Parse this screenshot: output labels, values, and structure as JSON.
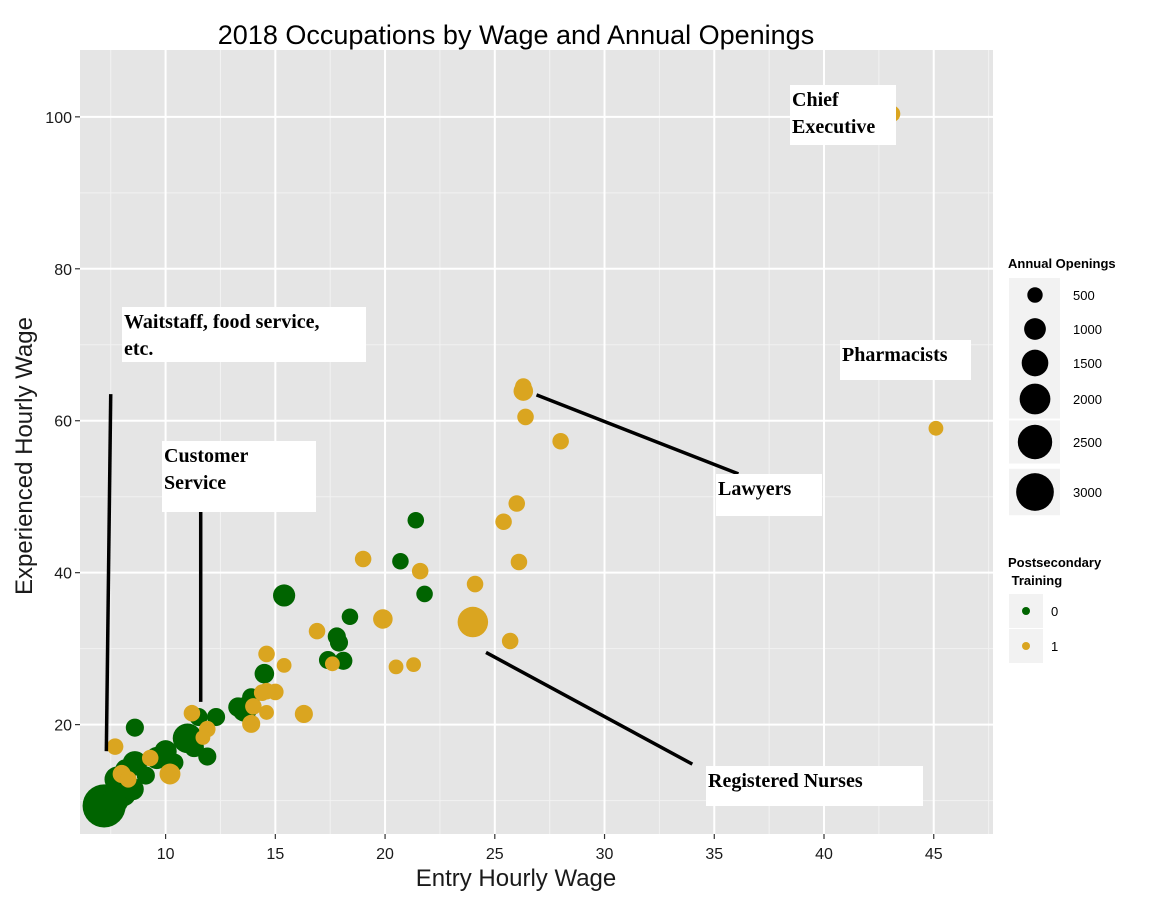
{
  "chart_data": {
    "type": "scatter",
    "title": "2018 Occupations by Wage and Annual Openings",
    "xlabel": "Entry Hourly Wage",
    "ylabel": "Experienced Hourly Wage",
    "xlim": [
      6.1,
      47.7
    ],
    "ylim": [
      5.6,
      108.8
    ],
    "x_ticks": [
      10,
      15,
      20,
      25,
      30,
      35,
      40,
      45
    ],
    "y_ticks": [
      20,
      40,
      60,
      80,
      100
    ],
    "grid": true,
    "colors": {
      "0": "#006400",
      "1": "#daa520",
      "panel": "#e5e5e5",
      "grid": "#ffffff"
    },
    "size_legend": {
      "title": "Annual Openings",
      "values": [
        500,
        1000,
        1500,
        2000,
        2500,
        3000
      ]
    },
    "color_legend": {
      "title_lines": [
        "Postsecondary",
        " Training"
      ],
      "values": [
        "0",
        "1"
      ]
    },
    "annotations": [
      {
        "lines": [
          "Chief",
          "Executive"
        ]
      },
      {
        "lines": [
          "Pharmacists"
        ]
      },
      {
        "lines": [
          "Waitstaff, food service,",
          "etc."
        ]
      },
      {
        "lines": [
          "Customer",
          "Service"
        ]
      },
      {
        "lines": [
          "Lawyers"
        ]
      },
      {
        "lines": [
          "Registered Nurses"
        ]
      }
    ],
    "pointer_lines": [
      {
        "label": "Waitstaff",
        "x1": 7.5,
        "y1": 63.5,
        "x2": 7.3,
        "y2": 16.5
      },
      {
        "label": "Customer Service",
        "x1": 11.6,
        "y1": 50.0,
        "x2": 11.6,
        "y2": 23.0
      },
      {
        "label": "Lawyers",
        "x1": 26.9,
        "y1": 63.4,
        "x2": 36.1,
        "y2": 53.0
      },
      {
        "label": "Registered Nurses",
        "x1": 24.6,
        "y1": 29.5,
        "x2": 34.0,
        "y2": 14.8
      }
    ],
    "series": [
      {
        "training": 0,
        "points": [
          {
            "x": 7.2,
            "y": 9.3,
            "openings": 3400
          },
          {
            "x": 7.7,
            "y": 10.0,
            "openings": 1300
          },
          {
            "x": 8.1,
            "y": 10.8,
            "openings": 1000
          },
          {
            "x": 8.5,
            "y": 11.5,
            "openings": 900
          },
          {
            "x": 7.8,
            "y": 12.8,
            "openings": 1200
          },
          {
            "x": 8.2,
            "y": 14.0,
            "openings": 900
          },
          {
            "x": 8.6,
            "y": 14.9,
            "openings": 1100
          },
          {
            "x": 9.1,
            "y": 13.3,
            "openings": 600
          },
          {
            "x": 9.6,
            "y": 15.6,
            "openings": 900
          },
          {
            "x": 10.0,
            "y": 16.5,
            "openings": 900
          },
          {
            "x": 10.4,
            "y": 15.0,
            "openings": 600
          },
          {
            "x": 8.6,
            "y": 19.6,
            "openings": 600
          },
          {
            "x": 11.0,
            "y": 18.2,
            "openings": 1600
          },
          {
            "x": 11.3,
            "y": 17.0,
            "openings": 700
          },
          {
            "x": 11.5,
            "y": 21.0,
            "openings": 600
          },
          {
            "x": 11.9,
            "y": 15.8,
            "openings": 600
          },
          {
            "x": 12.3,
            "y": 21.0,
            "openings": 600
          },
          {
            "x": 13.3,
            "y": 22.3,
            "openings": 700
          },
          {
            "x": 13.6,
            "y": 22.0,
            "openings": 1100
          },
          {
            "x": 13.9,
            "y": 23.6,
            "openings": 600
          },
          {
            "x": 14.5,
            "y": 26.7,
            "openings": 700
          },
          {
            "x": 15.4,
            "y": 37.0,
            "openings": 900
          },
          {
            "x": 17.4,
            "y": 28.5,
            "openings": 600
          },
          {
            "x": 17.8,
            "y": 31.6,
            "openings": 600
          },
          {
            "x": 17.9,
            "y": 30.8,
            "openings": 600
          },
          {
            "x": 18.1,
            "y": 28.4,
            "openings": 600
          },
          {
            "x": 18.4,
            "y": 34.2,
            "openings": 500
          },
          {
            "x": 20.7,
            "y": 41.5,
            "openings": 500
          },
          {
            "x": 21.4,
            "y": 46.9,
            "openings": 500
          },
          {
            "x": 21.8,
            "y": 37.2,
            "openings": 500
          }
        ]
      },
      {
        "training": 1,
        "points": [
          {
            "x": 7.7,
            "y": 17.1,
            "openings": 500
          },
          {
            "x": 8.0,
            "y": 13.5,
            "openings": 600
          },
          {
            "x": 8.3,
            "y": 12.8,
            "openings": 500
          },
          {
            "x": 9.3,
            "y": 15.6,
            "openings": 500
          },
          {
            "x": 10.2,
            "y": 13.5,
            "openings": 800
          },
          {
            "x": 11.2,
            "y": 21.5,
            "openings": 500
          },
          {
            "x": 11.7,
            "y": 18.3,
            "openings": 400
          },
          {
            "x": 11.9,
            "y": 19.4,
            "openings": 500
          },
          {
            "x": 13.9,
            "y": 20.1,
            "openings": 600
          },
          {
            "x": 14.0,
            "y": 22.4,
            "openings": 500
          },
          {
            "x": 14.4,
            "y": 24.2,
            "openings": 500
          },
          {
            "x": 14.6,
            "y": 29.3,
            "openings": 500
          },
          {
            "x": 14.6,
            "y": 24.4,
            "openings": 500
          },
          {
            "x": 14.6,
            "y": 21.6,
            "openings": 400
          },
          {
            "x": 15.0,
            "y": 24.3,
            "openings": 500
          },
          {
            "x": 15.4,
            "y": 27.8,
            "openings": 400
          },
          {
            "x": 16.3,
            "y": 21.4,
            "openings": 600
          },
          {
            "x": 16.9,
            "y": 32.3,
            "openings": 500
          },
          {
            "x": 17.6,
            "y": 28.0,
            "openings": 400
          },
          {
            "x": 19.0,
            "y": 41.8,
            "openings": 500
          },
          {
            "x": 19.9,
            "y": 33.9,
            "openings": 700
          },
          {
            "x": 20.5,
            "y": 27.6,
            "openings": 400
          },
          {
            "x": 21.3,
            "y": 27.9,
            "openings": 400
          },
          {
            "x": 21.6,
            "y": 40.2,
            "openings": 500
          },
          {
            "x": 24.0,
            "y": 33.5,
            "openings": 1700
          },
          {
            "x": 24.1,
            "y": 38.5,
            "openings": 500
          },
          {
            "x": 25.4,
            "y": 46.7,
            "openings": 500
          },
          {
            "x": 25.7,
            "y": 31.0,
            "openings": 500
          },
          {
            "x": 26.0,
            "y": 49.1,
            "openings": 500
          },
          {
            "x": 26.1,
            "y": 41.4,
            "openings": 500
          },
          {
            "x": 26.3,
            "y": 63.9,
            "openings": 700
          },
          {
            "x": 26.3,
            "y": 64.5,
            "openings": 500
          },
          {
            "x": 26.4,
            "y": 60.5,
            "openings": 500
          },
          {
            "x": 28.0,
            "y": 57.3,
            "openings": 500
          },
          {
            "x": 43.1,
            "y": 100.4,
            "openings": 500
          },
          {
            "x": 45.1,
            "y": 59.0,
            "openings": 400
          }
        ]
      }
    ]
  }
}
